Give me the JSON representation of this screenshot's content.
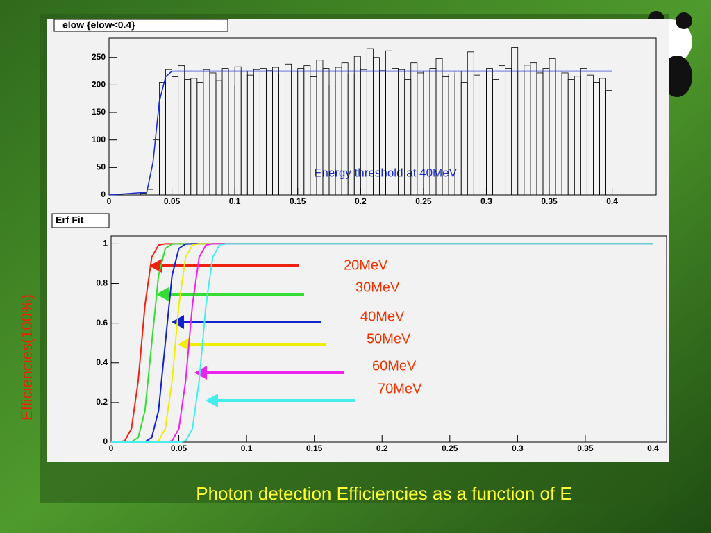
{
  "chart_data": [
    {
      "type": "histogram",
      "title": "elow {elow<0.4}",
      "bins": [
        0,
        0.005,
        0.01,
        0.015,
        0.02,
        0.025,
        0.03,
        0.035,
        0.04,
        0.045,
        0.05,
        0.055,
        0.06,
        0.065,
        0.07,
        0.075,
        0.08,
        0.085,
        0.09,
        0.095,
        0.1,
        0.105,
        0.11,
        0.115,
        0.12,
        0.125,
        0.13,
        0.135,
        0.14,
        0.145,
        0.15,
        0.155,
        0.16,
        0.165,
        0.17,
        0.175,
        0.18,
        0.185,
        0.19,
        0.195,
        0.2,
        0.205,
        0.21,
        0.215,
        0.22,
        0.225,
        0.23,
        0.235,
        0.24,
        0.245,
        0.25,
        0.255,
        0.26,
        0.265,
        0.27,
        0.275,
        0.28,
        0.285,
        0.29,
        0.295,
        0.3,
        0.305,
        0.31,
        0.315,
        0.32,
        0.325,
        0.33,
        0.335,
        0.34,
        0.345,
        0.35,
        0.355,
        0.36,
        0.365,
        0.37,
        0.375,
        0.38,
        0.385,
        0.39,
        0.395,
        0.4
      ],
      "values": [
        0,
        0,
        0,
        0,
        0,
        3,
        10,
        100,
        205,
        228,
        215,
        235,
        210,
        212,
        205,
        228,
        222,
        208,
        230,
        200,
        233,
        225,
        218,
        228,
        230,
        226,
        232,
        220,
        238,
        225,
        230,
        235,
        215,
        245,
        230,
        200,
        232,
        240,
        220,
        252,
        228,
        266,
        250,
        226,
        262,
        230,
        228,
        210,
        240,
        222,
        225,
        230,
        248,
        215,
        220,
        225,
        205,
        260,
        218,
        225,
        230,
        210,
        235,
        230,
        268,
        225,
        236,
        240,
        222,
        230,
        248,
        225,
        222,
        210,
        216,
        230,
        218,
        205,
        212,
        190
      ],
      "color": "#000000",
      "fit": {
        "x": [
          0,
          0.03,
          0.035,
          0.04,
          0.045,
          0.05,
          0.4
        ],
        "values": [
          0,
          5,
          60,
          170,
          215,
          225,
          225
        ],
        "color": "#1a2fd0"
      },
      "annotation": "Energy threshold at 40MeV",
      "xlim": [
        0,
        0.435
      ],
      "ylim": [
        0,
        285
      ],
      "xticks": [
        0,
        0.05,
        0.1,
        0.15,
        0.2,
        0.25,
        0.3,
        0.35,
        0.4
      ],
      "yticks": [
        0,
        50,
        100,
        150,
        200,
        250
      ]
    },
    {
      "type": "line",
      "title": "Erf Fit",
      "y_label": "Efficiencies(100%)",
      "x": [
        0,
        0.005,
        0.01,
        0.015,
        0.02,
        0.025,
        0.03,
        0.035,
        0.04,
        0.045,
        0.05,
        0.055,
        0.06,
        0.065,
        0.07,
        0.075,
        0.08,
        0.085,
        0.09,
        0.4
      ],
      "series": [
        {
          "name": "20MeV",
          "color": "#ee2211",
          "values": [
            0,
            0,
            0.006,
            0.067,
            0.309,
            0.691,
            0.933,
            0.994,
            1,
            1,
            1,
            1,
            1,
            1,
            1,
            1,
            1,
            1,
            1,
            1
          ]
        },
        {
          "name": "30MeV",
          "color": "#33dd33",
          "values": [
            0,
            0,
            0,
            0.001,
            0.023,
            0.159,
            0.5,
            0.841,
            0.977,
            0.999,
            1,
            1,
            1,
            1,
            1,
            1,
            1,
            1,
            1,
            1
          ]
        },
        {
          "name": "40MeV",
          "color": "#1122cc",
          "values": [
            0,
            0,
            0,
            0,
            0,
            0.001,
            0.023,
            0.159,
            0.5,
            0.841,
            0.977,
            0.999,
            1,
            1,
            1,
            1,
            1,
            1,
            1,
            1
          ]
        },
        {
          "name": "50MeV",
          "color": "#eeee00",
          "values": [
            0,
            0,
            0,
            0,
            0,
            0,
            0,
            0.006,
            0.067,
            0.309,
            0.691,
            0.933,
            0.994,
            1,
            1,
            1,
            1,
            1,
            1,
            1
          ]
        },
        {
          "name": "60MeV",
          "color": "#ee22ee",
          "values": [
            0,
            0,
            0,
            0,
            0,
            0,
            0,
            0,
            0,
            0.006,
            0.067,
            0.309,
            0.691,
            0.933,
            0.994,
            1,
            1,
            1,
            1,
            1
          ]
        },
        {
          "name": "70MeV",
          "color": "#44eeee",
          "values": [
            0,
            0,
            0,
            0,
            0,
            0,
            0,
            0,
            0,
            0,
            0,
            0.006,
            0.067,
            0.309,
            0.691,
            0.933,
            0.994,
            1,
            1,
            1
          ]
        }
      ],
      "label_color": "#ee3300",
      "xlim": [
        0,
        0.41
      ],
      "ylim": [
        0,
        1.04
      ],
      "xticks": [
        0,
        0.05,
        0.1,
        0.15,
        0.2,
        0.25,
        0.3,
        0.35,
        0.4
      ],
      "yticks": [
        0,
        0.2,
        0.4,
        0.6,
        0.8,
        1
      ]
    }
  ],
  "caption": "Photon detection Efficiencies as a function of E"
}
